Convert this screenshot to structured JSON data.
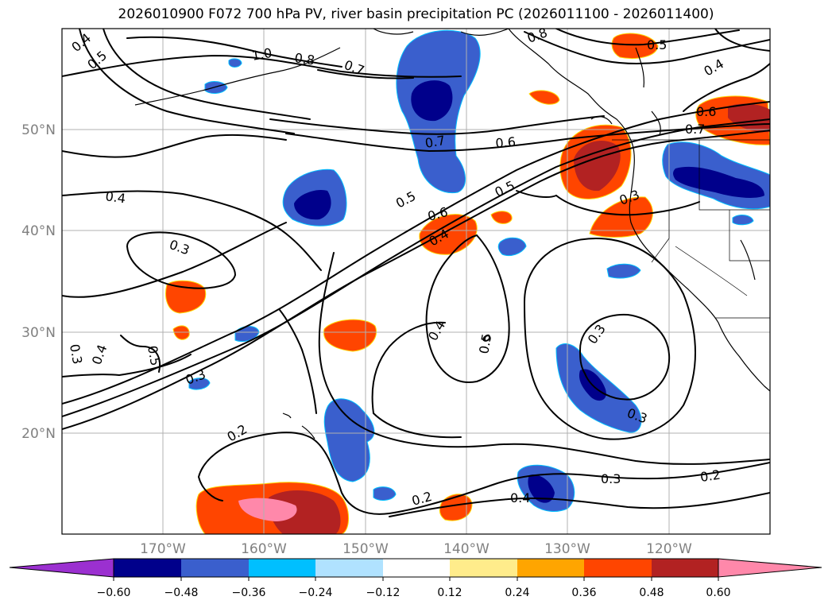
{
  "title": "2026010900 F072 700 hPa PV, river basin precipitation PC (2026011100 - 2026011400)",
  "map": {
    "lat_labels": [
      "50°N",
      "40°N",
      "30°N",
      "20°N"
    ],
    "lon_labels": [
      "170°W",
      "160°W",
      "150°W",
      "140°W",
      "130°W",
      "120°W"
    ],
    "contour_labels": [
      "0.4",
      "0.5",
      "1.0",
      "0.8",
      "0.7",
      "0.8",
      "0.5",
      "0.4",
      "0.6",
      "0.7",
      "0.7",
      "0.6",
      "0.5",
      "0.5",
      "0.4",
      "0.3",
      "0.6",
      "0.4",
      "0.3",
      "0.3",
      "0.4",
      "0.5",
      "0.3",
      "0.4",
      "0.5",
      "0.3",
      "0.2",
      "0.3",
      "0.3",
      "0.2",
      "0.2",
      "0.4"
    ]
  },
  "colorbar": {
    "ticks": [
      "−0.60",
      "−0.48",
      "−0.36",
      "−0.24",
      "−0.12",
      "0.12",
      "0.24",
      "0.36",
      "0.48",
      "0.60"
    ],
    "colors": [
      "#9b30d0",
      "#00008b",
      "#3a5fcd",
      "#00bfff",
      "#b0e2ff",
      "#ffffff",
      "#ffec8b",
      "#ffa500",
      "#ff4500",
      "#b22222",
      "#ff88aa"
    ]
  }
}
